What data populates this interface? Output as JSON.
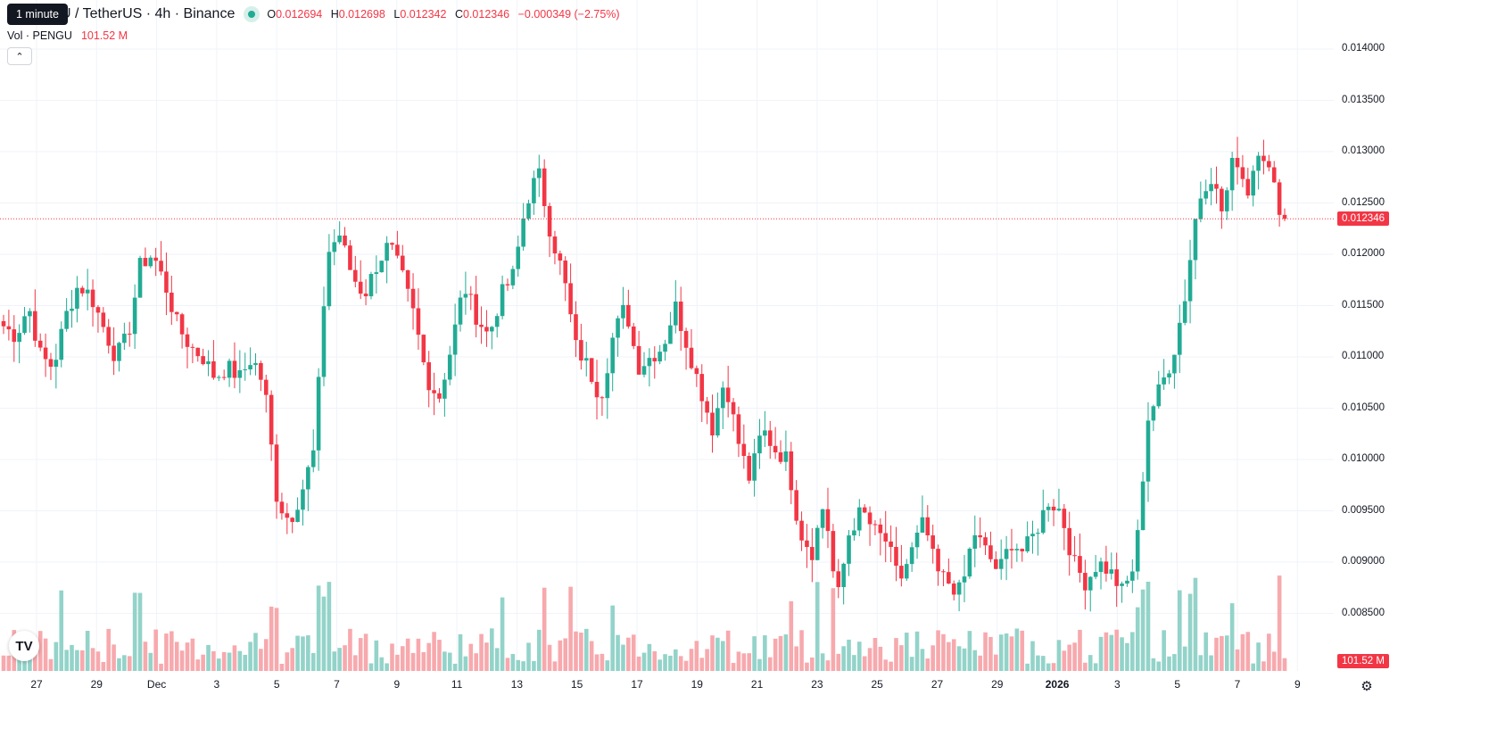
{
  "header": {
    "tooltip": "1 minute",
    "symbol": "U / TetherUS · 4h · Binance",
    "open_label": "O",
    "open": "0.012694",
    "high_label": "H",
    "high": "0.012698",
    "low_label": "L",
    "low": "0.012342",
    "close_label": "C",
    "close": "0.012346",
    "change": "−0.000349 (−2.75%)"
  },
  "volume": {
    "label": "Vol · PENGU",
    "value": "101.52 M"
  },
  "price_axis": [
    "0.014000",
    "0.013500",
    "0.013000",
    "0.012500",
    "0.012000",
    "0.011500",
    "0.011000",
    "0.010500",
    "0.010000",
    "0.009500",
    "0.009000",
    "0.008500"
  ],
  "last_price": "0.012346",
  "last_volume": "101.52 M",
  "time_axis": [
    "27",
    "29",
    "Dec",
    "3",
    "5",
    "7",
    "9",
    "11",
    "13",
    "15",
    "17",
    "19",
    "21",
    "23",
    "25",
    "27",
    "29",
    "2026",
    "3",
    "5",
    "7",
    "9"
  ],
  "colors": {
    "up": "#22ab94",
    "down": "#f23645",
    "up_vol": "#93d3c9",
    "down_vol": "#f7a9ad",
    "grid": "#f0f3fa"
  },
  "icons": {
    "logo": "tradingview-logo-icon",
    "collapse": "chevron-up-icon",
    "settings": "gear-icon"
  },
  "chart_data": {
    "type": "candlestick",
    "interval": "4h",
    "ylim": [
      0.0082,
      0.0141
    ],
    "last_close": 0.012346,
    "x_start": "2025-11-26",
    "candle_closes": [
      0.0113,
      0.0112,
      0.0115,
      0.011,
      0.0109,
      0.0114,
      0.0117,
      0.0116,
      0.0113,
      0.011,
      0.0112,
      0.0119,
      0.012,
      0.0117,
      0.0113,
      0.0111,
      0.011,
      0.0108,
      0.0109,
      0.0108,
      0.011,
      0.0107,
      0.0096,
      0.0094,
      0.0097,
      0.0101,
      0.012,
      0.0122,
      0.0118,
      0.0116,
      0.0119,
      0.0121,
      0.0118,
      0.0114,
      0.0108,
      0.0106,
      0.0111,
      0.0117,
      0.0114,
      0.0112,
      0.0116,
      0.0118,
      0.0125,
      0.0128,
      0.0122,
      0.0118,
      0.0111,
      0.0109,
      0.0106,
      0.0112,
      0.0115,
      0.0109,
      0.011,
      0.0111,
      0.0115,
      0.0111,
      0.0107,
      0.0103,
      0.0108,
      0.0102,
      0.0098,
      0.0103,
      0.0101,
      0.01,
      0.0093,
      0.0091,
      0.0096,
      0.0086,
      0.0093,
      0.0095,
      0.0093,
      0.0092,
      0.0088,
      0.0091,
      0.0094,
      0.0089,
      0.0088,
      0.0087,
      0.0093,
      0.0091,
      0.0089,
      0.0092,
      0.0091,
      0.0093,
      0.0096,
      0.0095,
      0.009,
      0.0088,
      0.009,
      0.0089,
      0.0087,
      0.009,
      0.0104,
      0.0107,
      0.011,
      0.0116,
      0.0125,
      0.0128,
      0.0124,
      0.013,
      0.0126,
      0.0131,
      0.0127,
      0.0123
    ]
  }
}
